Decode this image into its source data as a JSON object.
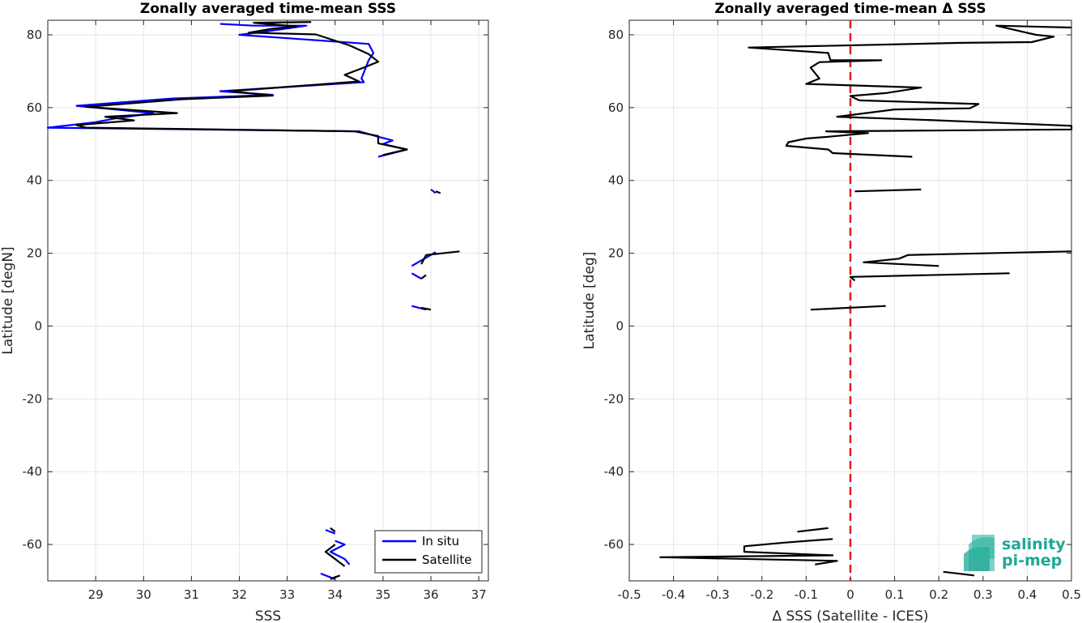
{
  "chart_data": [
    {
      "type": "line",
      "title": "Zonally averaged time-mean SSS",
      "xlabel": "SSS",
      "ylabel": "Latitude [degN]",
      "xlim": [
        28,
        37.2
      ],
      "ylim": [
        -70,
        84
      ],
      "xticks": [
        29,
        30,
        31,
        32,
        33,
        34,
        35,
        36,
        37
      ],
      "yticks": [
        -60,
        -40,
        -20,
        0,
        20,
        40,
        60,
        80
      ],
      "xtick_labels": [
        "29",
        "30",
        "31",
        "32",
        "33",
        "34",
        "35",
        "36",
        "37"
      ],
      "ytick_labels": [
        "-60",
        "-40",
        "-20",
        "0",
        "20",
        "40",
        "60",
        "80"
      ],
      "grid": true,
      "legend": "bottom-right",
      "series": [
        {
          "name": "In situ",
          "color": "#0000ff",
          "segments": [
            [
              [
                31.6,
                83
              ],
              [
                32.3,
                82.5
              ],
              [
                33.4,
                82.5
              ],
              [
                32.6,
                81
              ],
              [
                32.0,
                80
              ],
              [
                34.7,
                77.5
              ],
              [
                34.8,
                75
              ],
              [
                34.7,
                73
              ],
              [
                34.55,
                68
              ],
              [
                34.6,
                67
              ],
              [
                31.6,
                64.5
              ],
              [
                32.7,
                63.5
              ],
              [
                30.6,
                62.5
              ],
              [
                28.6,
                60.5
              ],
              [
                30.2,
                58.5
              ],
              [
                29.4,
                57
              ],
              [
                29.0,
                56
              ],
              [
                28.0,
                54.5
              ],
              [
                34.5,
                53.5
              ],
              [
                34.9,
                52
              ],
              [
                35.2,
                51
              ],
              [
                35.0,
                50
              ],
              [
                35.5,
                48.5
              ],
              [
                35.2,
                47.5
              ],
              [
                34.9,
                46.5
              ]
            ],
            [
              [
                36.0,
                37.5
              ],
              [
                36.1,
                36.5
              ]
            ],
            [
              [
                35.6,
                16.5
              ],
              [
                36.1,
                20.3
              ]
            ],
            [
              [
                35.6,
                14.5
              ],
              [
                35.8,
                13
              ]
            ],
            [
              [
                35.6,
                5.5
              ],
              [
                35.9,
                4.5
              ]
            ],
            [
              [
                33.8,
                -56
              ],
              [
                34.0,
                -57
              ]
            ],
            [
              [
                34.0,
                -59
              ],
              [
                34.2,
                -60
              ],
              [
                33.9,
                -62
              ],
              [
                34.2,
                -64
              ],
              [
                34.3,
                -65.5
              ]
            ],
            [
              [
                33.7,
                -68
              ],
              [
                34.0,
                -69.5
              ]
            ]
          ]
        },
        {
          "name": "Satellite",
          "color": "#000000",
          "segments": [
            [
              [
                33.5,
                83.5
              ],
              [
                32.3,
                83.3
              ],
              [
                33.2,
                82.3
              ],
              [
                32.7,
                81.7
              ],
              [
                32.2,
                80.6
              ],
              [
                33.6,
                80.1
              ],
              [
                34.3,
                77.1
              ],
              [
                34.7,
                74.7
              ],
              [
                34.9,
                72.6
              ],
              [
                34.6,
                71
              ],
              [
                34.2,
                69
              ],
              [
                34.5,
                67.2
              ],
              [
                31.8,
                64.5
              ],
              [
                32.7,
                63.3
              ],
              [
                30.8,
                62.3
              ],
              [
                28.8,
                60.2
              ],
              [
                30.7,
                58.5
              ],
              [
                29.2,
                57.5
              ],
              [
                29.8,
                56.5
              ],
              [
                28.6,
                55.2
              ],
              [
                28.8,
                54.5
              ],
              [
                34.4,
                53.5
              ],
              [
                34.9,
                52.2
              ],
              [
                34.9,
                50.2
              ],
              [
                35.5,
                48.5
              ],
              [
                35.0,
                47
              ]
            ],
            [
              [
                36.1,
                37
              ],
              [
                36.2,
                36.5
              ]
            ],
            [
              [
                36.6,
                20.5
              ],
              [
                35.9,
                19.5
              ],
              [
                35.8,
                17
              ]
            ],
            [
              [
                35.8,
                13
              ],
              [
                35.9,
                14
              ]
            ],
            [
              [
                35.8,
                5
              ],
              [
                36.0,
                4.5
              ]
            ],
            [
              [
                33.9,
                -55.5
              ],
              [
                34.0,
                -56.5
              ]
            ],
            [
              [
                34.0,
                -60
              ],
              [
                33.8,
                -62
              ],
              [
                34.0,
                -64
              ],
              [
                34.2,
                -66
              ]
            ],
            [
              [
                34.1,
                -68.5
              ],
              [
                33.9,
                -69.5
              ]
            ]
          ]
        }
      ]
    },
    {
      "type": "line",
      "title": "Zonally averaged time-mean Δ SSS",
      "xlabel": "Δ SSS (Satellite - ICES)",
      "ylabel": "Latitude [deg]",
      "xlim": [
        -0.5,
        0.5
      ],
      "ylim": [
        -70,
        84
      ],
      "xticks": [
        -0.5,
        -0.4,
        -0.3,
        -0.2,
        -0.1,
        0,
        0.1,
        0.2,
        0.3,
        0.4,
        0.5
      ],
      "yticks": [
        -60,
        -40,
        -20,
        0,
        20,
        40,
        60,
        80
      ],
      "xtick_labels": [
        "-0.5",
        "-0.4",
        "-0.3",
        "-0.2",
        "-0.1",
        "0",
        "0.1",
        "0.2",
        "0.3",
        "0.4",
        "0.5"
      ],
      "ytick_labels": [
        "-60",
        "-40",
        "-20",
        "0",
        "20",
        "40",
        "60",
        "80"
      ],
      "grid": true,
      "reference_line": {
        "x": 0,
        "color": "#e41a1c",
        "style": "dashed"
      },
      "series": [
        {
          "color": "#000000",
          "segments": [
            [
              [
                0.5,
                82
              ],
              [
                0.33,
                82.5
              ],
              [
                0.42,
                80
              ],
              [
                0.46,
                79.5
              ],
              [
                0.41,
                78
              ],
              [
                0.25,
                77.8
              ],
              [
                -0.23,
                76.5
              ],
              [
                -0.05,
                75
              ],
              [
                -0.045,
                73
              ],
              [
                0.07,
                73
              ],
              [
                -0.07,
                72.5
              ],
              [
                -0.09,
                71
              ],
              [
                -0.08,
                69.5
              ],
              [
                -0.07,
                68
              ],
              [
                -0.1,
                66.5
              ],
              [
                0.16,
                65.5
              ],
              [
                0.08,
                64
              ],
              [
                0.0,
                63.2
              ],
              [
                0.02,
                62
              ],
              [
                0.29,
                61
              ],
              [
                0.27,
                59.8
              ],
              [
                0.1,
                59.5
              ],
              [
                -0.03,
                57.5
              ],
              [
                0.2,
                56.5
              ],
              [
                0.5,
                55
              ],
              [
                0.5,
                54
              ],
              [
                -0.055,
                53.5
              ],
              [
                0.04,
                53
              ],
              [
                -0.05,
                52
              ],
              [
                -0.1,
                51.5
              ],
              [
                -0.14,
                50.5
              ],
              [
                -0.145,
                49.5
              ],
              [
                -0.05,
                48.5
              ],
              [
                -0.04,
                47.5
              ],
              [
                0.14,
                46.5
              ]
            ],
            [
              [
                0.01,
                37
              ],
              [
                0.16,
                37.5
              ]
            ],
            [
              [
                0.5,
                20.5
              ],
              [
                0.13,
                19.5
              ],
              [
                0.11,
                18.5
              ],
              [
                0.03,
                17.5
              ],
              [
                0.2,
                16.5
              ]
            ],
            [
              [
                0.01,
                12.5
              ],
              [
                0.0,
                13.5
              ],
              [
                0.36,
                14.5
              ]
            ],
            [
              [
                -0.09,
                4.5
              ],
              [
                0.08,
                5.5
              ]
            ],
            [
              [
                -0.12,
                -56.5
              ],
              [
                -0.05,
                -55.5
              ]
            ],
            [
              [
                -0.04,
                -58.5
              ],
              [
                -0.15,
                -59.5
              ],
              [
                -0.24,
                -60.5
              ],
              [
                -0.24,
                -62
              ],
              [
                -0.04,
                -63
              ],
              [
                -0.43,
                -63.5
              ],
              [
                -0.03,
                -64.5
              ],
              [
                -0.08,
                -65.5
              ]
            ],
            [
              [
                0.21,
                -67.5
              ],
              [
                0.28,
                -68.5
              ]
            ]
          ]
        }
      ]
    }
  ],
  "legend": {
    "insitu": "In situ",
    "satellite": "Satellite"
  },
  "logo": {
    "line1": "salinity",
    "line2": "pi-mep",
    "color": "#1ea896"
  }
}
